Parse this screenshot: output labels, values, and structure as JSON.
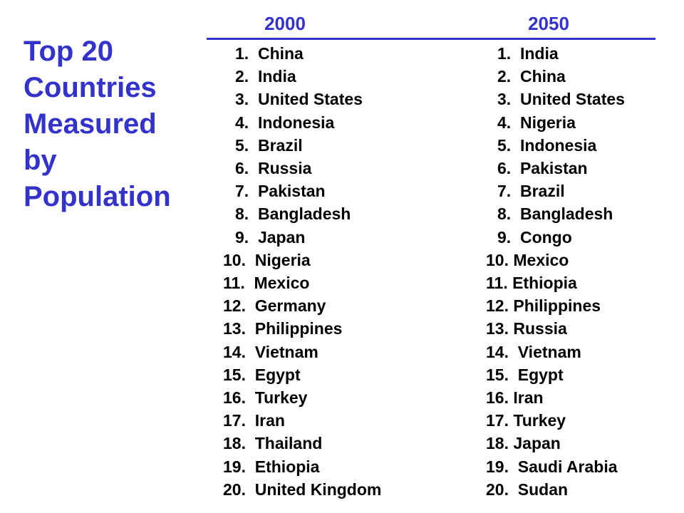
{
  "title_lines": [
    "Top 20",
    "Countries",
    "Measured",
    "by",
    "Population"
  ],
  "columns": [
    {
      "header": "2000",
      "items": [
        "1.  China",
        "2.  India",
        "3.  United States",
        "4.  Indonesia",
        "5.  Brazil",
        "6.  Russia",
        "7.  Pakistan",
        "8.  Bangladesh",
        "9.  Japan",
        "10.  Nigeria",
        "11.  Mexico",
        "12.  Germany",
        "13.  Philippines",
        "14.  Vietnam",
        "15.  Egypt",
        "16.  Turkey",
        "17.  Iran",
        "18.  Thailand",
        "19.  Ethiopia",
        "20.  United Kingdom"
      ]
    },
    {
      "header": "2050",
      "items": [
        "1.  India",
        "2.  China",
        "3.  United States",
        "4.  Nigeria",
        "5.  Indonesia",
        "6.  Pakistan",
        "7.  Brazil",
        "8.  Bangladesh",
        "9.  Congo",
        "10. Mexico",
        "11. Ethiopia",
        "12. Philippines",
        "13. Russia",
        "14.  Vietnam",
        "15.  Egypt",
        "16. Iran",
        "17. Turkey",
        "18. Japan",
        "19.  Saudi Arabia",
        "20.  Sudan"
      ]
    }
  ]
}
